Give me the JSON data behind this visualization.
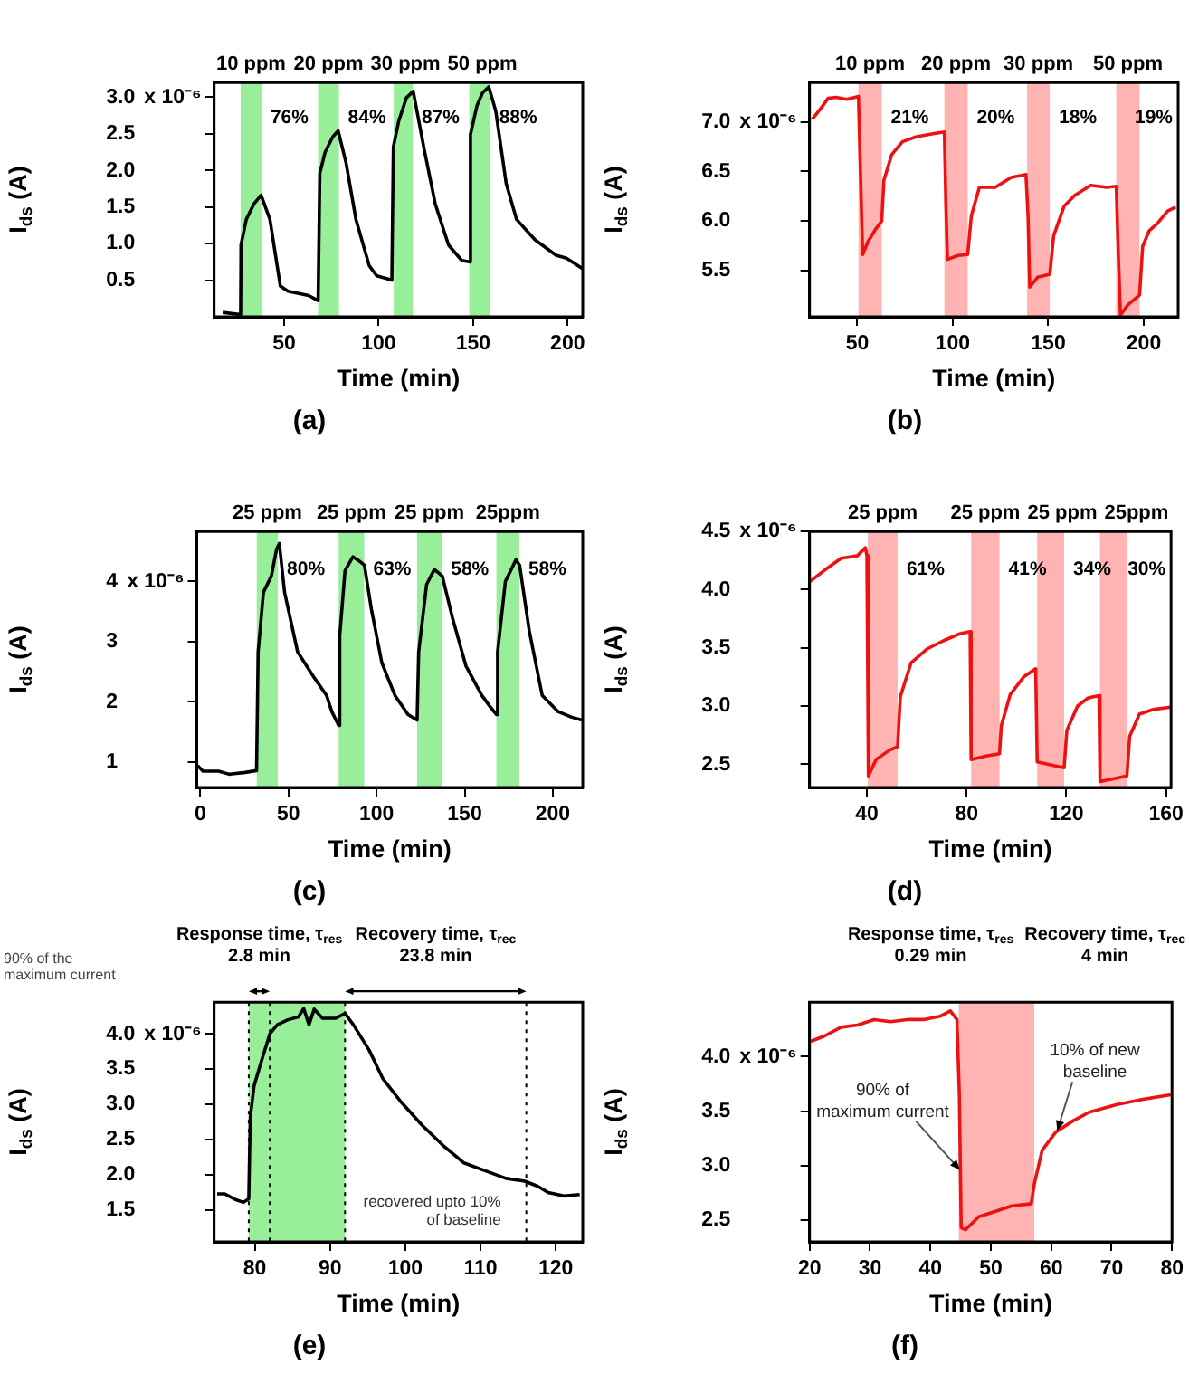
{
  "chart_data": [
    {
      "type": "line",
      "title": "(a)",
      "xlabel": "Time (min)",
      "ylabel": "I$_{ds}$ (A)",
      "xlim": [
        13,
        208
      ],
      "ylim": [
        0,
        3.2
      ],
      "xticks": [
        50,
        100,
        150,
        200
      ],
      "yticks": [
        0.5,
        {
          "value": 1,
          "label": "1.0"
        },
        1.5,
        {
          "value": 2,
          "label": "2.0"
        },
        2.5,
        {
          "value": 3,
          "label": "3.0"
        }
      ],
      "x": [
        17.5,
        27,
        27.2,
        30,
        34,
        37.8,
        42.5,
        48,
        52,
        63,
        68,
        68.9,
        71.7,
        75.8,
        78.6,
        82.8,
        88,
        95,
        99,
        106,
        107,
        107.8,
        110.6,
        114.7,
        118.3,
        124.4,
        130,
        137,
        144,
        148,
        148.6,
        152,
        155,
        158.3,
        162,
        167.5,
        173,
        182.8,
        193.9,
        199.4,
        207.8
      ],
      "series": [
        {
          "color": "#000000",
          "values": [
            0.06,
            0.03,
            0.98,
            1.33,
            1.54,
            1.66,
            1.33,
            0.42,
            0.35,
            0.29,
            0.22,
            1.96,
            2.25,
            2.46,
            2.54,
            2.1,
            1.33,
            0.7,
            0.56,
            0.51,
            0.5,
            2.32,
            2.67,
            2.99,
            3.08,
            2.25,
            1.54,
            0.98,
            0.77,
            0.75,
            2.49,
            2.88,
            3.06,
            3.14,
            2.81,
            1.82,
            1.33,
            1.05,
            0.84,
            0.8,
            0.66
          ]
        }
      ],
      "bands": [
        {
          "axis": "x",
          "from": 27,
          "to": 38,
          "label": "10 ppm",
          "color": "#99ee99"
        },
        {
          "axis": "x",
          "from": 68,
          "to": 79,
          "label": "20 ppm",
          "color": "#99ee99"
        },
        {
          "axis": "x",
          "from": 108,
          "to": 118,
          "label": "30 ppm",
          "color": "#99ee99"
        },
        {
          "axis": "x",
          "from": 148,
          "to": 159,
          "label": "50 ppm",
          "color": "#99ee99"
        }
      ],
      "annotations": [
        "76%",
        "84%",
        "87%",
        "88%",
        "x 10⁻⁶"
      ]
    },
    {
      "type": "line",
      "title": "(b)",
      "xlabel": "Time (min)",
      "ylabel": "I$_{ds}$ (A)",
      "xlim": [
        25,
        218
      ],
      "ylim": [
        5.03,
        7.4
      ],
      "xticks": [
        50,
        100,
        150,
        200
      ],
      "yticks": [
        5.5,
        {
          "value": 6,
          "label": "6.0"
        },
        6.5,
        {
          "value": 7,
          "label": "7.0"
        }
      ],
      "x": [
        26.4,
        30.6,
        34.7,
        38.9,
        44.4,
        50.6,
        51.4,
        52.8,
        55.6,
        59.7,
        62.8,
        63.9,
        68,
        73.6,
        80.6,
        88.9,
        95.6,
        96.4,
        97.2,
        102.8,
        107.8,
        109.7,
        113.9,
        122.2,
        130.6,
        138.3,
        139.4,
        140.3,
        144.4,
        150.8,
        152.8,
        158.3,
        163.9,
        172.2,
        180.6,
        185.6,
        186.7,
        187.8,
        191.7,
        197.8,
        199.4,
        202.8,
        206.9,
        212.5,
        216.7
      ],
      "series": [
        {
          "color": "#ee1111",
          "values": [
            7.03,
            7.13,
            7.24,
            7.25,
            7.23,
            7.26,
            6.67,
            5.66,
            5.79,
            5.92,
            6.0,
            6.41,
            6.67,
            6.8,
            6.85,
            6.88,
            6.9,
            6.15,
            5.61,
            5.65,
            5.66,
            6.05,
            6.34,
            6.34,
            6.44,
            6.47,
            6.05,
            5.33,
            5.43,
            5.46,
            5.85,
            6.15,
            6.26,
            6.36,
            6.34,
            6.35,
            5.64,
            5.05,
            5.15,
            5.25,
            5.74,
            5.9,
            5.97,
            6.1,
            6.14
          ]
        }
      ],
      "bands": [
        {
          "axis": "x",
          "from": 50.6,
          "to": 62.8,
          "label": "10 ppm",
          "color": "#ffb3b3"
        },
        {
          "axis": "x",
          "from": 95.6,
          "to": 107.8,
          "label": "20 ppm",
          "color": "#ffb3b3"
        },
        {
          "axis": "x",
          "from": 138.9,
          "to": 150.8,
          "label": "30 ppm",
          "color": "#ffb3b3"
        },
        {
          "axis": "x",
          "from": 185.6,
          "to": 197.8,
          "label": "50 ppm",
          "color": "#ffb3b3"
        }
      ],
      "annotations": [
        "21%",
        "20%",
        "18%",
        "19%",
        "x 10⁻⁶"
      ]
    },
    {
      "type": "line",
      "title": "(c)",
      "xlabel": "Time (min)",
      "ylabel": "I$_{ds}$ (A)",
      "xlim": [
        -2,
        217
      ],
      "ylim": [
        0.58,
        4.83
      ],
      "xticks": [
        0,
        50,
        100,
        150,
        200
      ],
      "yticks": [
        1,
        2,
        3,
        4
      ],
      "x": [
        -1.5,
        1.5,
        10.4,
        16.4,
        25.4,
        31.9,
        32.8,
        35.8,
        40.3,
        43.3,
        44.8,
        47.8,
        55.2,
        64.2,
        71.6,
        74.6,
        78.5,
        79.1,
        82.1,
        86.6,
        91,
        93.1,
        97,
        103,
        110.4,
        117.9,
        123,
        123.9,
        128.4,
        132.8,
        137.3,
        143.3,
        150.7,
        159.7,
        164.2,
        168,
        168.7,
        173.1,
        179.1,
        181.2,
        186.6,
        194,
        203,
        210.4,
        216.4
      ],
      "series": [
        {
          "color": "#000000",
          "values": [
            0.94,
            0.85,
            0.85,
            0.8,
            0.83,
            0.86,
            2.83,
            3.82,
            4.09,
            4.54,
            4.63,
            3.82,
            2.83,
            2.42,
            2.11,
            1.84,
            1.61,
            3.1,
            4.18,
            4.41,
            4.32,
            4.27,
            3.55,
            2.65,
            2.11,
            1.79,
            1.7,
            2.83,
            3.95,
            4.2,
            4.09,
            3.37,
            2.6,
            2.11,
            1.93,
            1.79,
            2.83,
            4.0,
            4.36,
            4.27,
            3.19,
            2.11,
            1.84,
            1.75,
            1.7
          ]
        }
      ],
      "bands": [
        {
          "axis": "x",
          "from": 32,
          "to": 44,
          "label": "25 ppm",
          "color": "#99ee99"
        },
        {
          "axis": "x",
          "from": 78.5,
          "to": 93,
          "label": "25 ppm",
          "color": "#99ee99"
        },
        {
          "axis": "x",
          "from": 123,
          "to": 137,
          "label": "25 ppm",
          "color": "#99ee99"
        },
        {
          "axis": "x",
          "from": 168,
          "to": 181,
          "label": "25ppm",
          "color": "#99ee99"
        }
      ],
      "annotations": [
        "80%",
        "63%",
        "58%",
        "58%",
        "x 10⁻⁶"
      ]
    },
    {
      "type": "line",
      "title": "(d)",
      "xlabel": "Time (min)",
      "ylabel": "I$_{ds}$ (A)",
      "xlim": [
        17,
        162
      ],
      "ylim": [
        2.3,
        4.5
      ],
      "xticks": [
        40,
        80,
        120,
        160
      ],
      "yticks": [
        2.5,
        {
          "value": 3,
          "label": "3.0"
        },
        3.5,
        {
          "value": 4,
          "label": "4.0"
        },
        4.5
      ],
      "x": [
        17.2,
        23.2,
        29.7,
        36.1,
        39.4,
        40,
        40.6,
        43.7,
        49,
        52.3,
        53.4,
        57.7,
        64.1,
        70.6,
        77.1,
        81.4,
        81.8,
        87.8,
        93.2,
        93.9,
        97.5,
        102.9,
        107.7,
        108.3,
        119.1,
        120.2,
        124.5,
        128.8,
        133.1,
        133.5,
        144.3,
        145.4,
        149.3,
        154.7,
        161.8
      ],
      "series": [
        {
          "color": "#ee1111",
          "values": [
            4.07,
            4.17,
            4.27,
            4.29,
            4.36,
            4.29,
            2.4,
            2.54,
            2.62,
            2.65,
            3.08,
            3.37,
            3.49,
            3.56,
            3.62,
            3.64,
            2.54,
            2.57,
            2.59,
            2.83,
            3.1,
            3.25,
            3.32,
            2.52,
            2.47,
            2.79,
            3.0,
            3.07,
            3.09,
            2.35,
            2.4,
            2.74,
            2.93,
            2.97,
            2.99
          ]
        }
      ],
      "bands": [
        {
          "axis": "x",
          "from": 40.4,
          "to": 52.3,
          "label": "25 ppm",
          "color": "#ffb3b3"
        },
        {
          "axis": "x",
          "from": 81.8,
          "to": 93.2,
          "label": "25 ppm",
          "color": "#ffb3b3"
        },
        {
          "axis": "x",
          "from": 108.3,
          "to": 119.1,
          "label": "25 ppm",
          "color": "#ffb3b3"
        },
        {
          "axis": "x",
          "from": 133.5,
          "to": 144.3,
          "label": "25ppm",
          "color": "#ffb3b3"
        }
      ],
      "annotations": [
        "61%",
        "41%",
        "34%",
        "30%",
        "x 10⁻⁶"
      ]
    },
    {
      "type": "line",
      "title": "(e)",
      "xlabel": "Time (min)",
      "ylabel": "I$_{ds}$ (A)",
      "xlim": [
        74.6,
        123.6
      ],
      "ylim": [
        1.05,
        4.45
      ],
      "xticks": [
        80,
        90,
        100,
        110,
        120
      ],
      "yticks": [
        1.5,
        {
          "value": 2,
          "label": "2.0"
        },
        2.5,
        {
          "value": 3,
          "label": "3.0"
        },
        3.5,
        {
          "value": 4,
          "label": "4.0"
        }
      ],
      "x": [
        75,
        76,
        77.4,
        78.5,
        79.2,
        79.4,
        79.9,
        80.9,
        82,
        83,
        84.4,
        85.8,
        86.5,
        87.2,
        87.9,
        89,
        90.7,
        92,
        93.1,
        95.2,
        97,
        99.4,
        102.2,
        105,
        107.8,
        110.6,
        113.4,
        115.9,
        117.6,
        119,
        121.1,
        123.2
      ],
      "series": [
        {
          "color": "#000000",
          "values": [
            1.73,
            1.73,
            1.65,
            1.61,
            1.66,
            2.82,
            3.26,
            3.62,
            4.0,
            4.13,
            4.2,
            4.24,
            4.36,
            4.13,
            4.35,
            4.22,
            4.22,
            4.29,
            4.13,
            3.77,
            3.37,
            3.04,
            2.71,
            2.42,
            2.17,
            2.06,
            1.95,
            1.91,
            1.84,
            1.75,
            1.7,
            1.72
          ]
        }
      ],
      "bands": [
        {
          "axis": "x",
          "from": 79.2,
          "to": 92,
          "color": "#99ee99"
        }
      ],
      "ref_lines": [
        {
          "axis": "x",
          "value": 79.2,
          "color": "#000000",
          "line_style": "dotted"
        },
        {
          "axis": "x",
          "value": 82,
          "color": "#000000",
          "line_style": "dotted"
        },
        {
          "axis": "x",
          "value": 92,
          "color": "#000000",
          "line_style": "dotted"
        },
        {
          "axis": "x",
          "value": 116.1,
          "color": "#000000",
          "line_style": "dotted",
          "label": "recovered upto 10%\nof baseline"
        }
      ],
      "annotations": [
        "90% of the\nmaximum current",
        "Response time, τ$_{res}$\n2.8 min",
        "Recovery time, τ$_{rec}$\n23.8 min",
        "x 10⁻⁶"
      ]
    },
    {
      "type": "line",
      "title": "(f)",
      "xlabel": "Time (min)",
      "ylabel": "I$_{ds}$ (A)",
      "xlim": [
        20,
        80
      ],
      "ylim": [
        2.3,
        4.5
      ],
      "xticks": [
        20,
        30,
        40,
        50,
        60,
        70,
        80
      ],
      "yticks": [
        2.5,
        {
          "value": 3,
          "label": "3.0"
        },
        3.5,
        {
          "value": 4,
          "label": "4.0"
        }
      ],
      "x": [
        20.2,
        22.5,
        25.2,
        27.9,
        30.7,
        33.4,
        36.2,
        38.9,
        41.6,
        43.3,
        44.4,
        44.8,
        45.1,
        45.8,
        48,
        50.8,
        53.5,
        56.7,
        57.2,
        58.5,
        60.8,
        63.6,
        66.3,
        70.9,
        75.4,
        79.8
      ],
      "series": [
        {
          "color": "#ee1111",
          "values": [
            4.14,
            4.19,
            4.27,
            4.29,
            4.34,
            4.32,
            4.34,
            4.34,
            4.37,
            4.42,
            4.34,
            3.64,
            2.43,
            2.41,
            2.53,
            2.58,
            2.63,
            2.65,
            2.83,
            3.14,
            3.31,
            3.41,
            3.49,
            3.56,
            3.61,
            3.65
          ]
        }
      ],
      "bands": [
        {
          "axis": "x",
          "from": 44.7,
          "to": 57.2,
          "color": "#ffb3b3"
        }
      ],
      "annotations": [
        "Response time, τ$_{res}$\n0.29 min",
        "Recovery time, τ$_{rec}$\n4 min",
        {
          "text": "90% of\nmaximum current",
          "x": 44.9,
          "y": 2.96
        },
        {
          "text": "10% of new\nbaseline",
          "x": 61,
          "y": 3.32
        },
        "x 10⁻⁶"
      ]
    }
  ]
}
